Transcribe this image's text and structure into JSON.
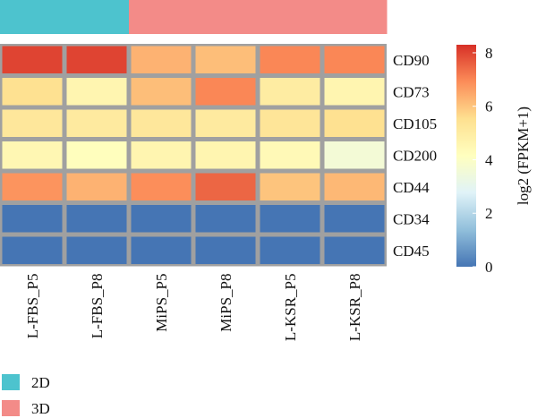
{
  "chart_data": {
    "type": "heatmap",
    "columns": [
      "L-FBS_P5",
      "L-FBS_P8",
      "MiPS_P5",
      "MiPS_P8",
      "L-KSR_P5",
      "L-KSR_P8"
    ],
    "rows": [
      "CD90",
      "CD73",
      "CD105",
      "CD200",
      "CD44",
      "CD34",
      "CD45"
    ],
    "values": [
      [
        8.0,
        8.0,
        6.3,
        6.1,
        7.0,
        7.0
      ],
      [
        5.5,
        4.6,
        6.1,
        7.0,
        5.0,
        4.6
      ],
      [
        5.2,
        5.1,
        5.2,
        5.1,
        5.3,
        5.5
      ],
      [
        4.5,
        4.2,
        4.6,
        4.6,
        4.4,
        3.6
      ],
      [
        6.8,
        6.3,
        6.9,
        7.5,
        6.0,
        6.2
      ],
      [
        0.0,
        0.0,
        0.0,
        0.0,
        0.0,
        0.0
      ],
      [
        0.0,
        0.0,
        0.0,
        0.0,
        0.0,
        0.0
      ]
    ],
    "column_groups": [
      "2D",
      "2D",
      "3D",
      "3D",
      "3D",
      "3D"
    ],
    "group_colors": {
      "2D": "#4DC3CE",
      "3D": "#F38B88"
    },
    "legend": [
      {
        "label": "2D",
        "color": "#4DC3CE"
      },
      {
        "label": "3D",
        "color": "#F38B88"
      }
    ],
    "colorbar": {
      "label": "log2 (FPKM+1)",
      "min": 0,
      "max": 8.3,
      "ticks": [
        "0",
        "2",
        "4",
        "6",
        "8"
      ],
      "tick_values": [
        0,
        2,
        4,
        6,
        8
      ]
    },
    "colorscale": [
      "#4575B4",
      "#91BFDB",
      "#E0F3F8",
      "#FFFFBF",
      "#FEE090",
      "#FC8D59",
      "#D73027"
    ],
    "grid_color": "#A0A0A0"
  }
}
